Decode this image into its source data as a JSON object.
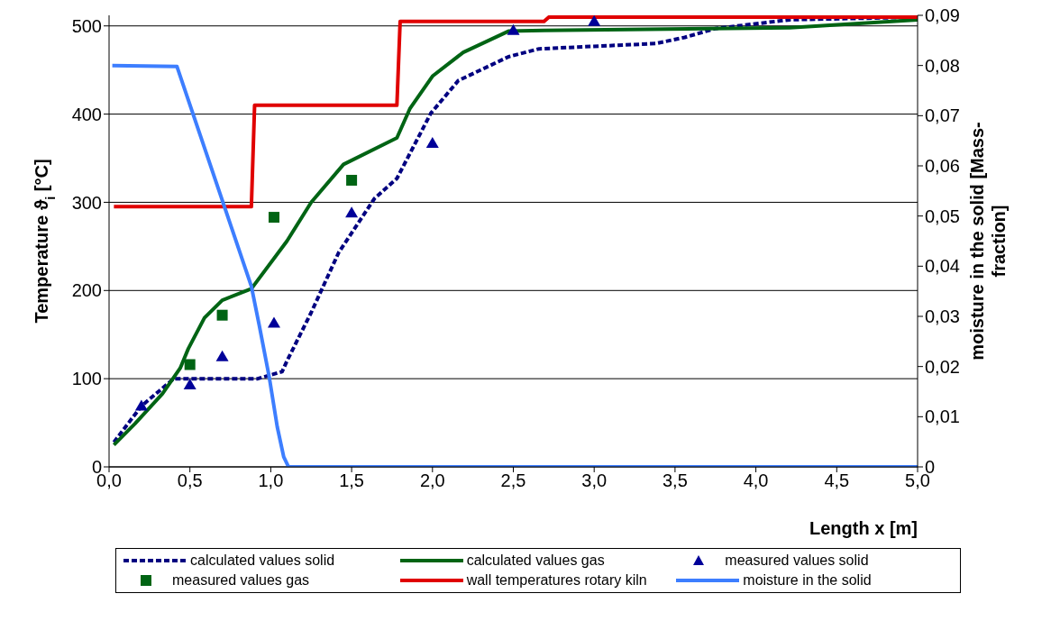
{
  "chart_data": {
    "type": "line",
    "xlabel": "Length x [m]",
    "ylabel": "Temperature ϑ$_{i}$ [°C]",
    "y2label": "moisture in the solid [Mass-fraction]",
    "xlim": [
      0,
      5
    ],
    "xticks": [
      {
        "value": 0,
        "label": "0,0"
      },
      {
        "value": 0.5,
        "label": "0,5"
      },
      {
        "value": 1,
        "label": "1,0"
      },
      {
        "value": 1.5,
        "label": "1,5"
      },
      {
        "value": 2,
        "label": "2,0"
      },
      {
        "value": 2.5,
        "label": "2,5"
      },
      {
        "value": 3,
        "label": "3,0"
      },
      {
        "value": 3.5,
        "label": "3,5"
      },
      {
        "value": 4,
        "label": "4,0"
      },
      {
        "value": 4.5,
        "label": "4,5"
      },
      {
        "value": 5,
        "label": "5,0"
      }
    ],
    "ylim": [
      0,
      512
    ],
    "yticks": [
      0,
      100,
      200,
      300,
      400,
      500
    ],
    "y2lim": [
      0,
      0.09
    ],
    "y2ticks": [
      0,
      {
        "value": 0.01,
        "label": "0,01"
      },
      {
        "value": 0.02,
        "label": "0,02"
      },
      {
        "value": 0.03,
        "label": "0,03"
      },
      {
        "value": 0.04,
        "label": "0,04"
      },
      {
        "value": 0.05,
        "label": "0,05"
      },
      {
        "value": 0.06,
        "label": "0,06"
      },
      {
        "value": 0.07,
        "label": "0,07"
      },
      {
        "value": 0.08,
        "label": "0,08"
      },
      {
        "value": 0.09,
        "label": "0,09"
      }
    ],
    "grid": "y",
    "legend": "bottom",
    "marker": "none",
    "series": [
      {
        "name": "calculated values solid",
        "line_style": "dashed",
        "color": "#000080",
        "x": [
          0.03,
          0.2,
          0.4,
          0.92,
          1.07,
          1.1,
          1.25,
          1.42,
          1.64,
          1.78,
          1.99,
          2.16,
          2.47,
          2.66,
          3.38,
          3.56,
          3.75,
          4.21,
          5.0
        ],
        "values": [
          28,
          69,
          100,
          100,
          108,
          120,
          175,
          243,
          304,
          327,
          401,
          438,
          465,
          474,
          480,
          487,
          497,
          507,
          510
        ]
      },
      {
        "name": "calculated values gas",
        "color": "#006414",
        "x": [
          0.03,
          0.16,
          0.33,
          0.44,
          0.49,
          0.59,
          0.7,
          0.88,
          1.1,
          1.25,
          1.45,
          1.78,
          1.86,
          2.0,
          2.19,
          2.47,
          2.69,
          4.21,
          5.0
        ],
        "values": [
          25,
          49,
          83,
          112,
          134,
          169,
          189,
          202,
          256,
          300,
          343,
          373,
          406,
          443,
          470,
          494,
          495,
          498,
          507
        ]
      },
      {
        "name": "measured values solid",
        "type": "scatter",
        "marker": "triangle",
        "color": "#000099",
        "x": [
          0.2,
          0.5,
          0.7,
          1.02,
          1.5,
          2.0,
          2.5,
          3.0
        ],
        "values": [
          69,
          93,
          125,
          163,
          288,
          367,
          495,
          505
        ]
      },
      {
        "name": "measured values gas",
        "type": "scatter",
        "marker": "square",
        "color": "#006414",
        "x": [
          0.5,
          0.7,
          1.02,
          1.5
        ],
        "values": [
          116,
          172,
          283,
          325
        ]
      },
      {
        "name": "wall temperatures rotary kiln",
        "color": "#e00000",
        "x": [
          0.03,
          0.88,
          0.9,
          1.78,
          1.8,
          2.69,
          2.72,
          5.0
        ],
        "values": [
          295,
          295,
          410,
          410,
          505,
          505,
          510,
          510
        ]
      },
      {
        "name": "moisture in the solid",
        "axis": "y2",
        "color": "#3d7eff",
        "x": [
          0.02,
          0.42,
          0.88,
          0.93,
          0.99,
          1.04,
          1.08,
          1.11,
          5.0
        ],
        "values": [
          0.08,
          0.0798,
          0.036,
          0.028,
          0.018,
          0.008,
          0.002,
          0,
          0
        ]
      }
    ]
  }
}
